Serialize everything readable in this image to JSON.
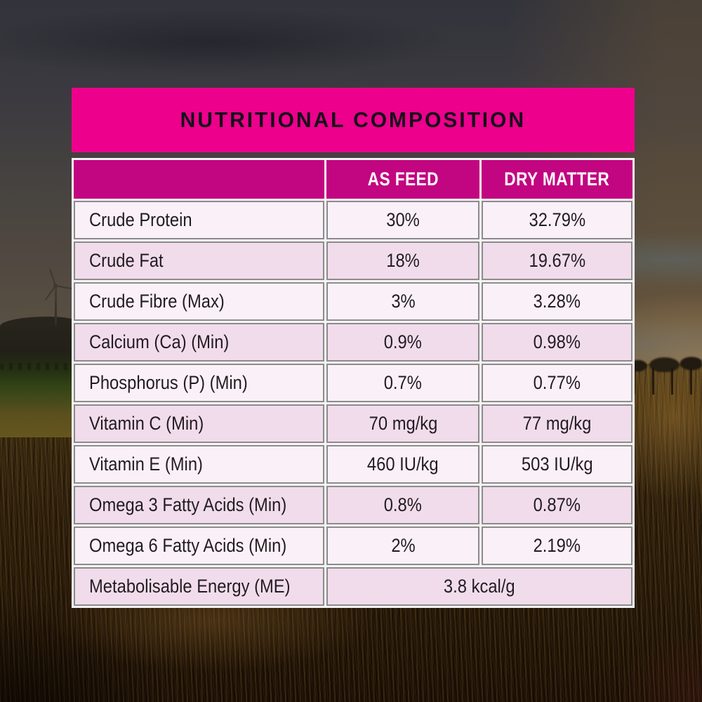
{
  "background": {
    "description": "dusk grassland scene with dark cloudy sky, distant hill and wind turbine on the left, treeline and fence posts on the right, tall brown grass in the foreground"
  },
  "panel": {
    "title": "NUTRITIONAL COMPOSITION",
    "columns": [
      "",
      "AS FEED",
      "DRY MATTER"
    ],
    "rows": [
      {
        "label": "Crude Protein",
        "as_feed": "30%",
        "dry_matter": "32.79%"
      },
      {
        "label": "Crude Fat",
        "as_feed": "18%",
        "dry_matter": "19.67%"
      },
      {
        "label": "Crude Fibre (Max)",
        "as_feed": "3%",
        "dry_matter": "3.28%"
      },
      {
        "label": "Calcium (Ca) (Min)",
        "as_feed": "0.9%",
        "dry_matter": "0.98%"
      },
      {
        "label": "Phosphorus (P) (Min)",
        "as_feed": "0.7%",
        "dry_matter": "0.77%"
      },
      {
        "label": "Vitamin C (Min)",
        "as_feed": "70 mg/kg",
        "dry_matter": "77 mg/kg"
      },
      {
        "label": "Vitamin E (Min)",
        "as_feed": "460 IU/kg",
        "dry_matter": "503 IU/kg"
      },
      {
        "label": "Omega 3 Fatty Acids (Min)",
        "as_feed": "0.8%",
        "dry_matter": "0.87%"
      },
      {
        "label": "Omega 6 Fatty Acids (Min)",
        "as_feed": "2%",
        "dry_matter": "2.19%"
      }
    ],
    "footer_row": {
      "label": "Metabolisable Energy (ME)",
      "value": "3.8 kcal/g"
    },
    "colors": {
      "title_bar": "#ec008c",
      "header_row": "#c20580",
      "row_light": "#faf1f8",
      "row_dark": "#f1dcec",
      "cell_border": "#8d8b8c",
      "title_text": "#16101a",
      "header_text": "#ffffff",
      "cell_text": "#221c20"
    }
  }
}
